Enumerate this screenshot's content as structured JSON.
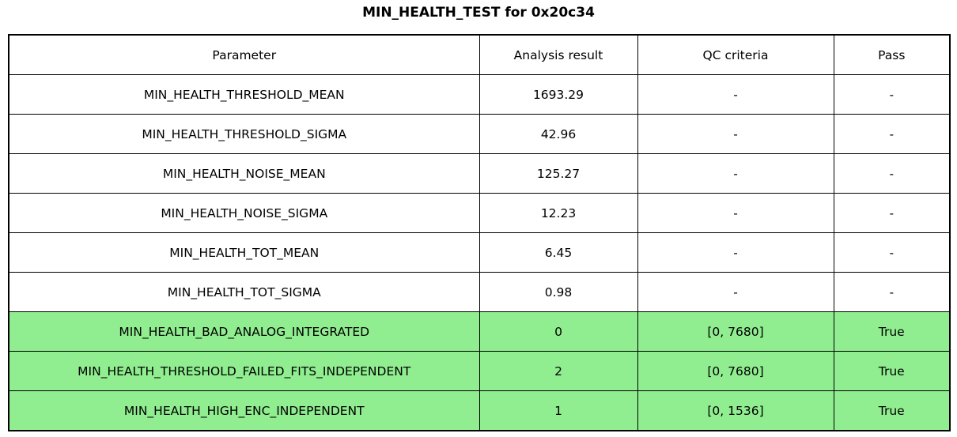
{
  "chart_data": {
    "type": "table",
    "title": "MIN_HEALTH_TEST for 0x20c34",
    "columns": [
      "Parameter",
      "Analysis result",
      "QC criteria",
      "Pass"
    ],
    "rows": [
      [
        "MIN_HEALTH_THRESHOLD_MEAN",
        "1693.29",
        "-",
        "-"
      ],
      [
        "MIN_HEALTH_THRESHOLD_SIGMA",
        "42.96",
        "-",
        "-"
      ],
      [
        "MIN_HEALTH_NOISE_MEAN",
        "125.27",
        "-",
        "-"
      ],
      [
        "MIN_HEALTH_NOISE_SIGMA",
        "12.23",
        "-",
        "-"
      ],
      [
        "MIN_HEALTH_TOT_MEAN",
        "6.45",
        "-",
        "-"
      ],
      [
        "MIN_HEALTH_TOT_SIGMA",
        "0.98",
        "-",
        "-"
      ],
      [
        "MIN_HEALTH_BAD_ANALOG_INTEGRATED",
        "0",
        "[0, 7680]",
        "True"
      ],
      [
        "MIN_HEALTH_THRESHOLD_FAILED_FITS_INDEPENDENT",
        "2",
        "[0, 7680]",
        "True"
      ],
      [
        "MIN_HEALTH_HIGH_ENC_INDEPENDENT",
        "1",
        "[0, 1536]",
        "True"
      ]
    ],
    "pass_row_indices": [
      6,
      7,
      8
    ],
    "colors": {
      "pass_green": "#90ee90",
      "border": "#000000",
      "background": "#ffffff",
      "text": "#000000"
    },
    "layout": {
      "grid": "on",
      "header_row": true,
      "title_position": "top-center"
    }
  }
}
